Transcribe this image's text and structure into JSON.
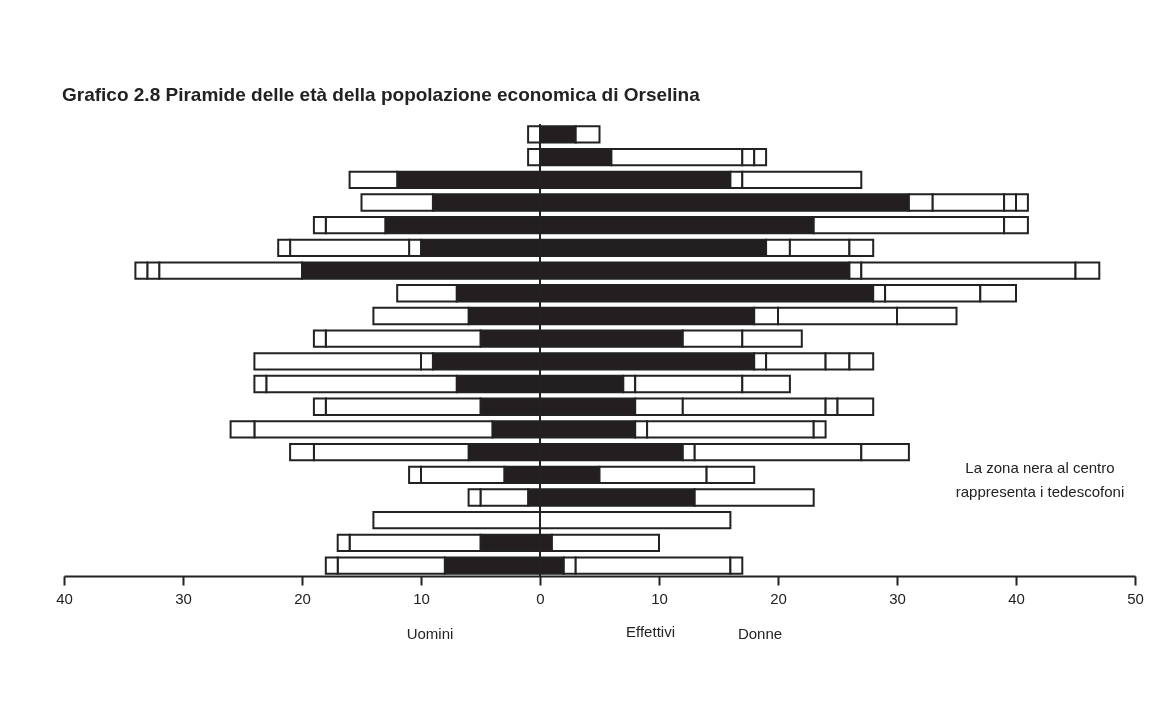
{
  "chart_data": {
    "type": "bar",
    "orientation": "horizontal",
    "stacked": true,
    "title": "Grafico 2.8  Piramide delle età della popolazione economica di Orselina",
    "xlabel": "Effettivi",
    "annotations": [
      "Uomini",
      "Donne",
      "La zona nera al centro rappresenta i tedescofoni"
    ],
    "categories": [
      null,
      null,
      null,
      null,
      null,
      null,
      null,
      null,
      null,
      null,
      null,
      null,
      null,
      null,
      null,
      null,
      null,
      null,
      null,
      null
    ],
    "series": [
      {
        "color": "#231f20",
        "values": [
          null,
          null,
          -12,
          -9,
          -13,
          -10,
          -20,
          -7,
          -6,
          -5,
          -9,
          -7,
          -5,
          -4,
          -6,
          -3,
          -1,
          null,
          -5,
          -8
        ]
      },
      {
        "color": "#ffffff",
        "values": [
          -1,
          -1,
          -4,
          -6,
          -5,
          -1,
          -12,
          -5,
          -8,
          -13,
          -1,
          -16,
          -13,
          -20,
          -13,
          -7,
          -4,
          -14,
          -11,
          -9
        ]
      },
      {
        "color": "#ffffff",
        "values": [
          null,
          null,
          null,
          null,
          -1,
          -10,
          -1,
          null,
          null,
          -1,
          -14,
          -1,
          -1,
          -2,
          -2,
          -1,
          -1,
          null,
          -1,
          -1
        ]
      },
      {
        "color": "#ffffff",
        "values": [
          null,
          null,
          null,
          null,
          null,
          -1,
          -1,
          null,
          null,
          null,
          null,
          null,
          null,
          null,
          null,
          null,
          null,
          null,
          null,
          null
        ]
      },
      {
        "color": "#231f20",
        "values": [
          3,
          6,
          16,
          31,
          23,
          19,
          26,
          28,
          18,
          12,
          18,
          7,
          8,
          8,
          12,
          5,
          13,
          null,
          1,
          2
        ]
      },
      {
        "color": "#ffffff",
        "values": [
          2,
          11,
          1,
          2,
          16,
          2,
          1,
          1,
          2,
          5,
          1,
          1,
          4,
          1,
          1,
          9,
          10,
          16,
          9,
          1
        ]
      },
      {
        "color": "#ffffff",
        "values": [
          null,
          1,
          10,
          6,
          2,
          5,
          18,
          8,
          10,
          5,
          5,
          9,
          12,
          14,
          14,
          4,
          null,
          null,
          null,
          13
        ]
      },
      {
        "color": "#ffffff",
        "values": [
          null,
          1,
          null,
          1,
          null,
          2,
          2,
          3,
          5,
          null,
          2,
          4,
          1,
          1,
          4,
          null,
          null,
          null,
          null,
          1
        ]
      },
      {
        "color": "#ffffff",
        "values": [
          null,
          null,
          null,
          1,
          null,
          null,
          null,
          null,
          null,
          null,
          2,
          null,
          3,
          null,
          null,
          null,
          null,
          null,
          null,
          null
        ]
      }
    ],
    "xlim": [
      -40,
      50
    ],
    "xticks": [
      {
        "value": -40,
        "label": "40"
      },
      {
        "value": -30,
        "label": "30"
      },
      {
        "value": -20,
        "label": "20"
      },
      {
        "value": -10,
        "label": "10"
      },
      0,
      10,
      20,
      30,
      40,
      50
    ],
    "ref_lines": [
      {
        "axis": "x",
        "value": 0
      }
    ],
    "tick_labels": "x"
  }
}
